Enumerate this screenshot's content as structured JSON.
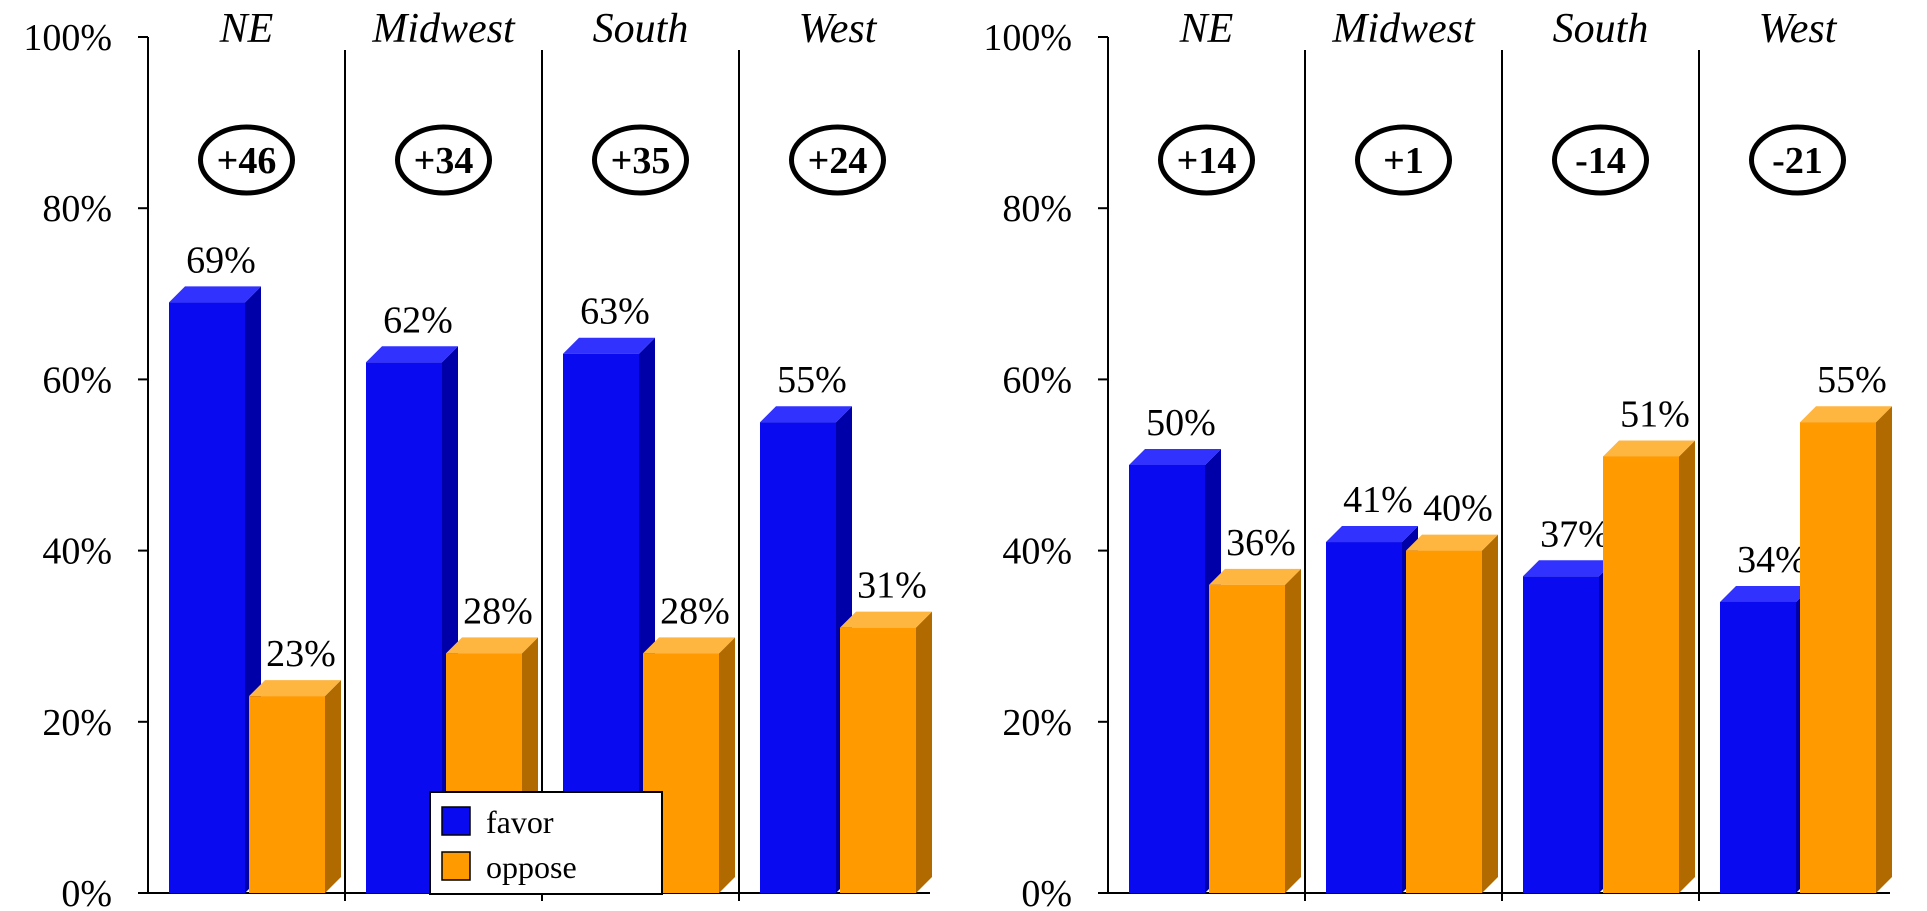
{
  "chart_data": [
    {
      "type": "bar",
      "categories": [
        "NE",
        "Midwest",
        "South",
        "West"
      ],
      "series": [
        {
          "name": "favor",
          "values": [
            69,
            62,
            63,
            55
          ]
        },
        {
          "name": "oppose",
          "values": [
            23,
            28,
            28,
            31
          ]
        }
      ],
      "value_labels": {
        "favor": [
          "69%",
          "62%",
          "63%",
          "55%"
        ],
        "oppose": [
          "23%",
          "28%",
          "28%",
          "31%"
        ]
      },
      "margins": [
        "+46",
        "+34",
        "+35",
        "+24"
      ],
      "ylim": [
        0,
        100
      ],
      "yticks": [
        "0%",
        "20%",
        "40%",
        "60%",
        "80%",
        "100%"
      ],
      "legend": {
        "position": "bottom-center",
        "entries": [
          "favor",
          "oppose"
        ]
      }
    },
    {
      "type": "bar",
      "categories": [
        "NE",
        "Midwest",
        "South",
        "West"
      ],
      "series": [
        {
          "name": "favor",
          "values": [
            50,
            41,
            37,
            34
          ]
        },
        {
          "name": "oppose",
          "values": [
            36,
            40,
            51,
            55
          ]
        }
      ],
      "value_labels": {
        "favor": [
          "50%",
          "41%",
          "37%",
          "34%"
        ],
        "oppose": [
          "36%",
          "40%",
          "51%",
          "55%"
        ]
      },
      "margins": [
        "+14",
        "+1",
        "-14",
        "-21"
      ],
      "ylim": [
        0,
        100
      ],
      "yticks": [
        "0%",
        "20%",
        "40%",
        "60%",
        "80%",
        "100%"
      ]
    }
  ],
  "colors": {
    "favor": "#0a0af0",
    "favor_top": "#3232ff",
    "favor_side": "#0000a8",
    "oppose": "#ff9a00",
    "oppose_top": "#ffb640",
    "oppose_side": "#b06a00"
  }
}
